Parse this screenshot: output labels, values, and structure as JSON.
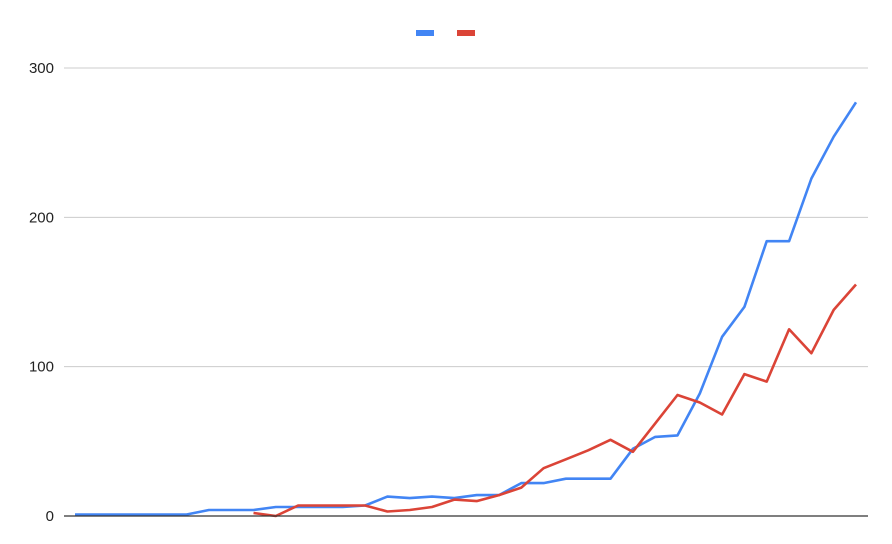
{
  "chart_data": {
    "type": "line",
    "title": "",
    "xlabel": "",
    "ylabel": "",
    "ylim": [
      0,
      300
    ],
    "yticks": [
      0,
      100,
      200,
      300
    ],
    "grid": true,
    "legend_placement": "top",
    "x": [
      0,
      1,
      2,
      3,
      4,
      5,
      6,
      7,
      8,
      9,
      10,
      11,
      12,
      13,
      14,
      15,
      16,
      17,
      18,
      19,
      20,
      21,
      22,
      23,
      24,
      25,
      26,
      27,
      28,
      29,
      30,
      31,
      32,
      33,
      34,
      35
    ],
    "series": [
      {
        "color": "#4285f4",
        "values": [
          1,
          1,
          1,
          1,
          1,
          1,
          4,
          4,
          4,
          6,
          6,
          6,
          6,
          7,
          13,
          12,
          13,
          12,
          14,
          14,
          22,
          22,
          25,
          25,
          25,
          45,
          53,
          54,
          82,
          120,
          140,
          184,
          184,
          226,
          254,
          277
        ]
      },
      {
        "color": "#db4437",
        "values": [
          null,
          null,
          null,
          null,
          null,
          null,
          null,
          null,
          2,
          0,
          7,
          7,
          7,
          7,
          3,
          4,
          6,
          11,
          10,
          14,
          19,
          32,
          38,
          44,
          51,
          43,
          62,
          81,
          76,
          68,
          95,
          90,
          125,
          109,
          138,
          155
        ]
      }
    ]
  }
}
